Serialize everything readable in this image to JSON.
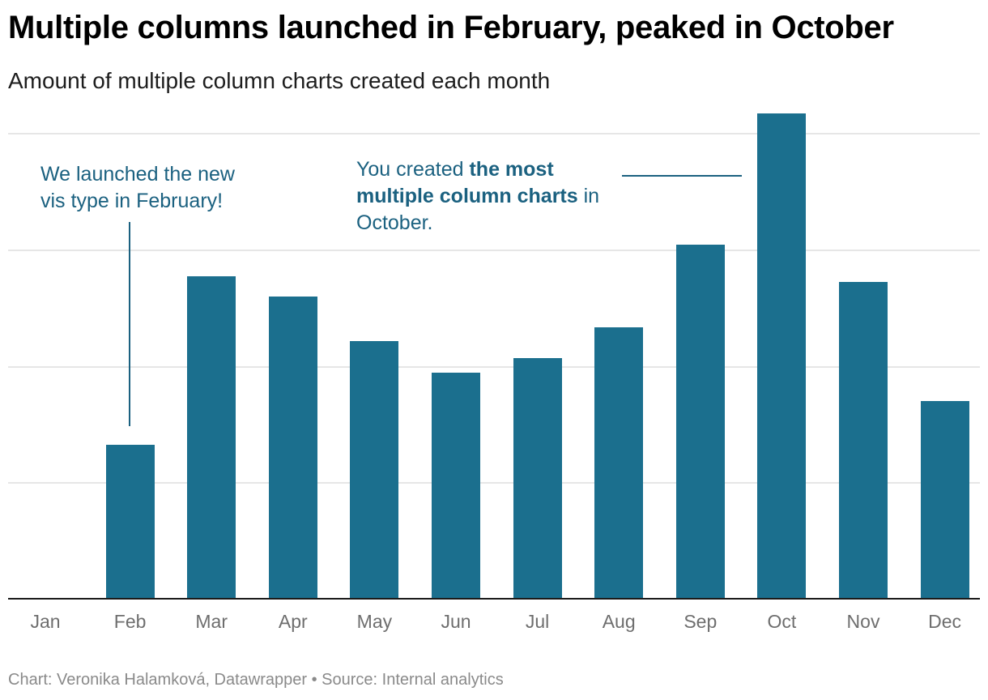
{
  "header": {
    "title": "Multiple columns launched in February, peaked in October",
    "subtitle": "Amount of multiple column charts created each month"
  },
  "annotations": {
    "feb": {
      "line1": "We launched the new",
      "line2": "vis type in February!"
    },
    "oct": {
      "pre": "You created ",
      "bold1": "the most",
      "bold2": "multiple column charts",
      "post": " in",
      "line3": "October."
    }
  },
  "footer": {
    "text": "Chart: Veronika Halamková, Datawrapper • Source: Internal analytics"
  },
  "colors": {
    "bar": "#1b6f8e",
    "annotation": "#1b6180",
    "grid": "#e6e6e6",
    "axis": "#1a1a1a"
  },
  "chart_data": {
    "type": "bar",
    "title": "Multiple columns launched in February, peaked in October",
    "subtitle": "Amount of multiple column charts created each month",
    "categories": [
      "Jan",
      "Feb",
      "Mar",
      "Apr",
      "May",
      "Jun",
      "Jul",
      "Aug",
      "Sep",
      "Oct",
      "Nov",
      "Dec"
    ],
    "values": [
      0,
      1.32,
      2.77,
      2.59,
      2.21,
      1.94,
      2.06,
      2.33,
      3.04,
      4.17,
      2.72,
      1.69
    ],
    "value_units": "relative (gridline units; y-axis tick labels not shown)",
    "xlabel": "",
    "ylabel": "",
    "ylim": [
      0,
      4
    ],
    "grid": true,
    "gridlines": 4,
    "legend": null,
    "annotations": [
      "We launched the new vis type in February!",
      "You created the most multiple column charts in October."
    ],
    "source": "Chart: Veronika Halamková, Datawrapper • Source: Internal analytics"
  }
}
